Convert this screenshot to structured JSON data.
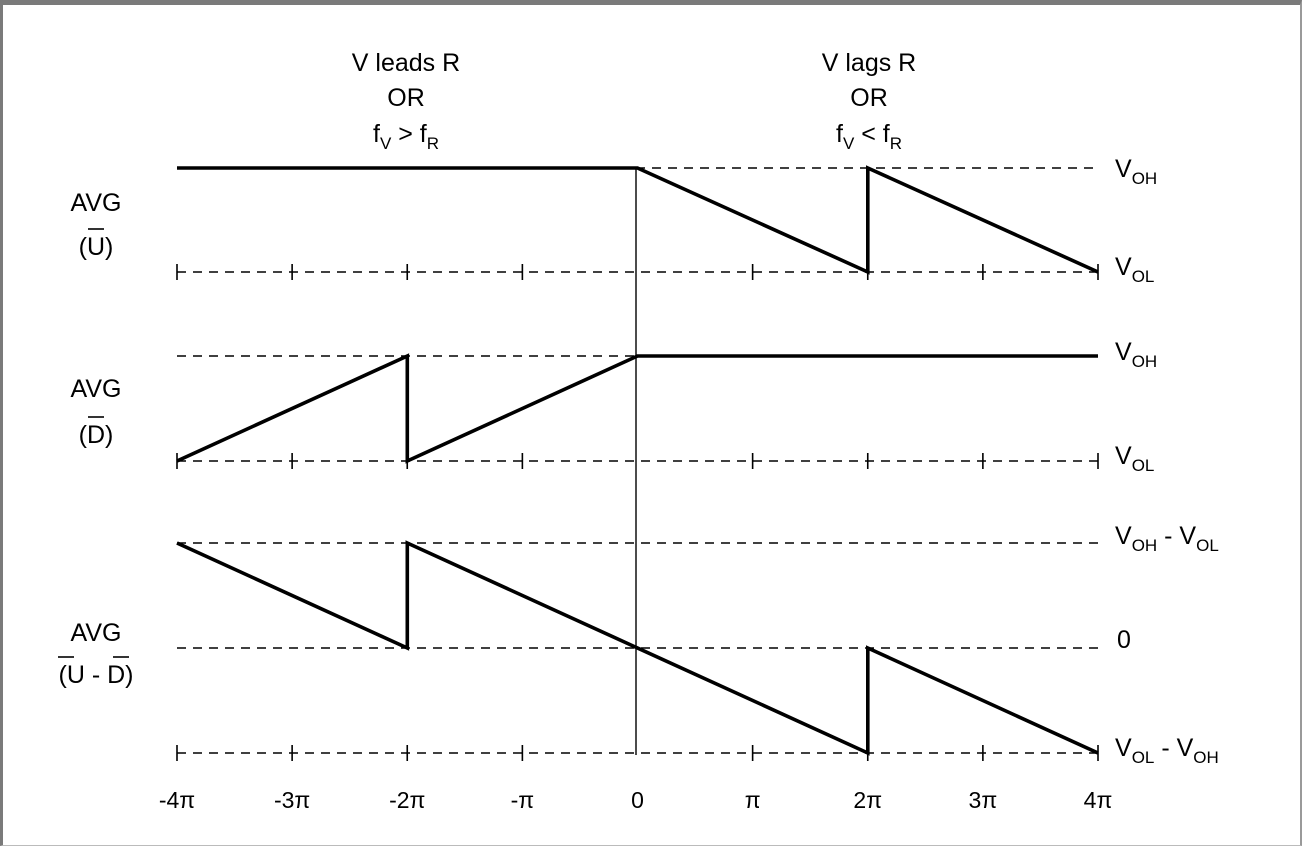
{
  "headers": {
    "left": [
      "V leads R",
      "OR",
      {
        "base": "f",
        "sub1": "V",
        "mid": " > f",
        "sub2": "R"
      }
    ],
    "right": [
      "V lags R",
      "OR",
      {
        "base": "f",
        "sub1": "V",
        "mid": " < f",
        "sub2": "R"
      }
    ]
  },
  "rows": [
    {
      "label_line1": "AVG",
      "label_line2": [
        "(",
        "U",
        ")"
      ],
      "overbar": [
        "U"
      ],
      "high_label": {
        "base": "V",
        "sub": "OH"
      },
      "low_label": {
        "base": "V",
        "sub": "OL"
      }
    },
    {
      "label_line1": "AVG",
      "label_line2": [
        "(",
        "D",
        ")"
      ],
      "overbar": [
        "D"
      ],
      "high_label": {
        "base": "V",
        "sub": "OH"
      },
      "low_label": {
        "base": "V",
        "sub": "OL"
      }
    },
    {
      "label_line1": "AVG",
      "label_line2": [
        "(",
        "U",
        " - ",
        "D",
        ")"
      ],
      "overbar": [
        "U",
        "D"
      ],
      "high_label": {
        "base": "V",
        "sub": "OH",
        "rest": " - V",
        "sub2": "OL"
      },
      "mid_label": "0",
      "low_label": {
        "base": "V",
        "sub": "OL",
        "rest": " - V",
        "sub2": "OH"
      }
    }
  ],
  "x_ticks": [
    "-4π",
    "-3π",
    "-2π",
    "-π",
    "0",
    "π",
    "2π",
    "3π",
    "4π"
  ],
  "x_tick_values": [
    -4,
    -3,
    -2,
    -1,
    0,
    1,
    2,
    3,
    4
  ],
  "x_unit": "π",
  "curves": {
    "avg_u": [
      [
        -4,
        1
      ],
      [
        0,
        1
      ],
      [
        2,
        0
      ],
      [
        2,
        1
      ],
      [
        4,
        0
      ]
    ],
    "avg_d": [
      [
        -4,
        0
      ],
      [
        -2,
        1
      ],
      [
        -2,
        0
      ],
      [
        0,
        1
      ],
      [
        4,
        1
      ]
    ],
    "avg_u_minus_d": [
      [
        -4,
        1
      ],
      [
        -2,
        0
      ],
      [
        -2,
        1
      ],
      [
        2,
        -1
      ],
      [
        2,
        0
      ],
      [
        4,
        -1
      ]
    ]
  }
}
